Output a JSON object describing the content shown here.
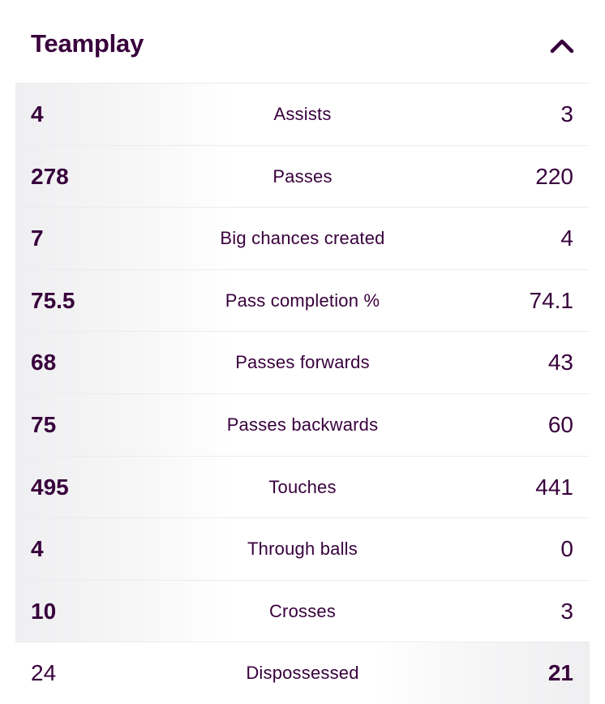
{
  "section": {
    "title": "Teamplay",
    "toggle_icon": "chevron-up-icon"
  },
  "colors": {
    "text": "#38003c",
    "row_highlight": "#efeff1",
    "divider": "#ececef"
  },
  "stats": [
    {
      "label": "Assists",
      "home": "4",
      "away": "3",
      "leader": "home"
    },
    {
      "label": "Passes",
      "home": "278",
      "away": "220",
      "leader": "home"
    },
    {
      "label": "Big chances created",
      "home": "7",
      "away": "4",
      "leader": "home"
    },
    {
      "label": "Pass completion %",
      "home": "75.5",
      "away": "74.1",
      "leader": "home"
    },
    {
      "label": "Passes forwards",
      "home": "68",
      "away": "43",
      "leader": "home"
    },
    {
      "label": "Passes backwards",
      "home": "75",
      "away": "60",
      "leader": "home"
    },
    {
      "label": "Touches",
      "home": "495",
      "away": "441",
      "leader": "home"
    },
    {
      "label": "Through balls",
      "home": "4",
      "away": "0",
      "leader": "home"
    },
    {
      "label": "Crosses",
      "home": "10",
      "away": "3",
      "leader": "home"
    },
    {
      "label": "Dispossessed",
      "home": "24",
      "away": "21",
      "leader": "away"
    }
  ]
}
